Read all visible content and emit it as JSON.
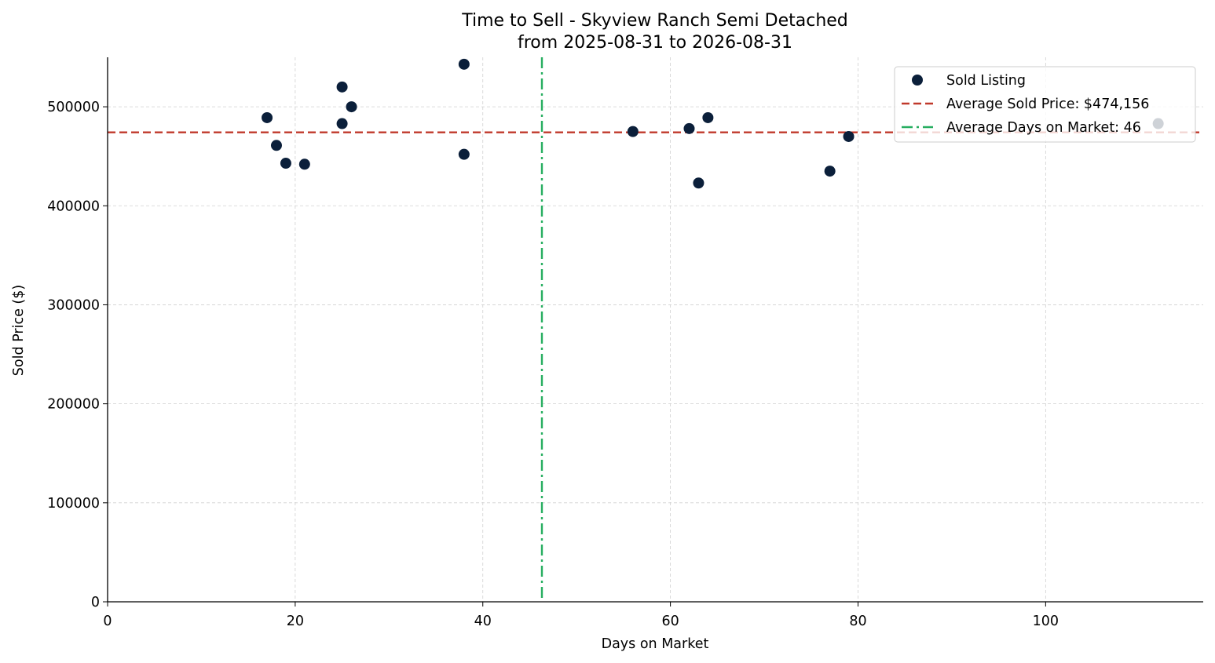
{
  "chart_data": {
    "type": "scatter",
    "title": "Time to Sell - Skyview Ranch Semi Detached",
    "subtitle": "from 2025-08-31 to 2026-08-31",
    "xlabel": "Days on Market",
    "ylabel": "Sold Price ($)",
    "xlim": [
      0,
      116.8
    ],
    "ylim": [
      0,
      550000
    ],
    "x_ticks": [
      0,
      20,
      40,
      60,
      80,
      100
    ],
    "y_ticks": [
      0,
      100000,
      200000,
      300000,
      400000,
      500000
    ],
    "grid": true,
    "legend_position": "top-right",
    "series": [
      {
        "name": "Sold Listing",
        "color": "#0b1f3a",
        "points": [
          {
            "x": 17,
            "y": 489000
          },
          {
            "x": 18,
            "y": 461000
          },
          {
            "x": 19,
            "y": 443000
          },
          {
            "x": 21,
            "y": 442000
          },
          {
            "x": 25,
            "y": 520000
          },
          {
            "x": 25,
            "y": 483000
          },
          {
            "x": 26,
            "y": 500000
          },
          {
            "x": 38,
            "y": 543000
          },
          {
            "x": 38,
            "y": 452000
          },
          {
            "x": 56,
            "y": 475000
          },
          {
            "x": 62,
            "y": 478000
          },
          {
            "x": 63,
            "y": 423000
          },
          {
            "x": 64,
            "y": 489000
          },
          {
            "x": 77,
            "y": 435000
          },
          {
            "x": 79,
            "y": 470000
          },
          {
            "x": 112,
            "y": 483000
          }
        ]
      }
    ],
    "reference_lines": [
      {
        "name": "Average Sold Price: $474,156",
        "orientation": "horizontal",
        "value": 474156,
        "color": "#c0392b",
        "style": "dashed"
      },
      {
        "name": "Average Days on Market: 46",
        "orientation": "vertical",
        "value": 46.3,
        "color": "#27ae60",
        "style": "dashdot"
      }
    ]
  }
}
